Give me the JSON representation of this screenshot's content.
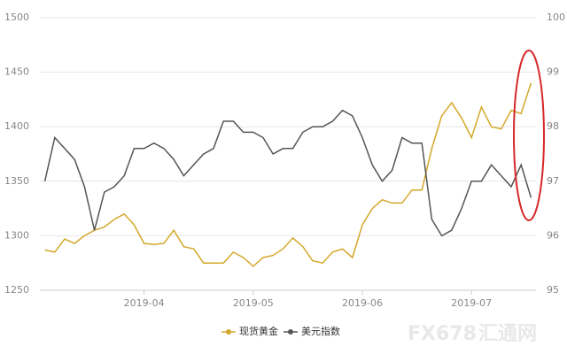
{
  "chart_data": {
    "type": "line",
    "categories": [
      null,
      null,
      null,
      null,
      null,
      null,
      null,
      null,
      null,
      null,
      "2019-04",
      null,
      null,
      null,
      null,
      null,
      null,
      null,
      null,
      null,
      null,
      "2019-05",
      null,
      null,
      null,
      null,
      null,
      null,
      null,
      null,
      null,
      null,
      "2019-06",
      null,
      null,
      null,
      null,
      null,
      null,
      null,
      null,
      null,
      null,
      "2019-07",
      null,
      null,
      null,
      null,
      null,
      null
    ],
    "series": [
      {
        "name": "现货黄金",
        "color": "#d4a82a",
        "values": [
          1287,
          1285,
          1297,
          1293,
          1300,
          1305,
          1308,
          1315,
          1320,
          1310,
          1293,
          1292,
          1293,
          1305,
          1290,
          1288,
          1275,
          1275,
          1275,
          1285,
          1280,
          1272,
          1280,
          1282,
          1288,
          1298,
          1290,
          1277,
          1275,
          1285,
          1288,
          1280,
          1310,
          1325,
          1333,
          1330,
          1330,
          1342,
          1342,
          1380,
          1410,
          1422,
          1408,
          1390,
          1418,
          1400,
          1398,
          1415,
          1412,
          1440
        ]
      },
      {
        "name": "美元指数",
        "color": "#555555",
        "axis": "y2",
        "values": [
          97.0,
          97.8,
          97.6,
          97.4,
          96.9,
          96.1,
          96.8,
          96.9,
          97.1,
          97.6,
          97.6,
          97.7,
          97.6,
          97.4,
          97.1,
          97.3,
          97.5,
          97.6,
          98.1,
          98.1,
          97.9,
          97.9,
          97.8,
          97.5,
          97.6,
          97.6,
          97.9,
          98.0,
          98.0,
          98.1,
          98.3,
          98.2,
          97.8,
          97.3,
          97.0,
          97.2,
          97.8,
          97.7,
          97.7,
          96.3,
          96.0,
          96.1,
          96.5,
          97.0,
          97.0,
          97.3,
          97.1,
          96.9,
          97.3,
          96.7
        ]
      }
    ],
    "ylim": [
      1250,
      1500
    ],
    "yticks": [
      1250,
      1300,
      1350,
      1400,
      1450,
      1500
    ],
    "y2lim": [
      95,
      100
    ],
    "y2ticks": [
      95,
      96,
      97,
      98,
      99,
      100
    ],
    "grid": true,
    "legend": "bottom"
  },
  "watermark": {
    "brand": "FX678",
    "name": "汇通网"
  }
}
